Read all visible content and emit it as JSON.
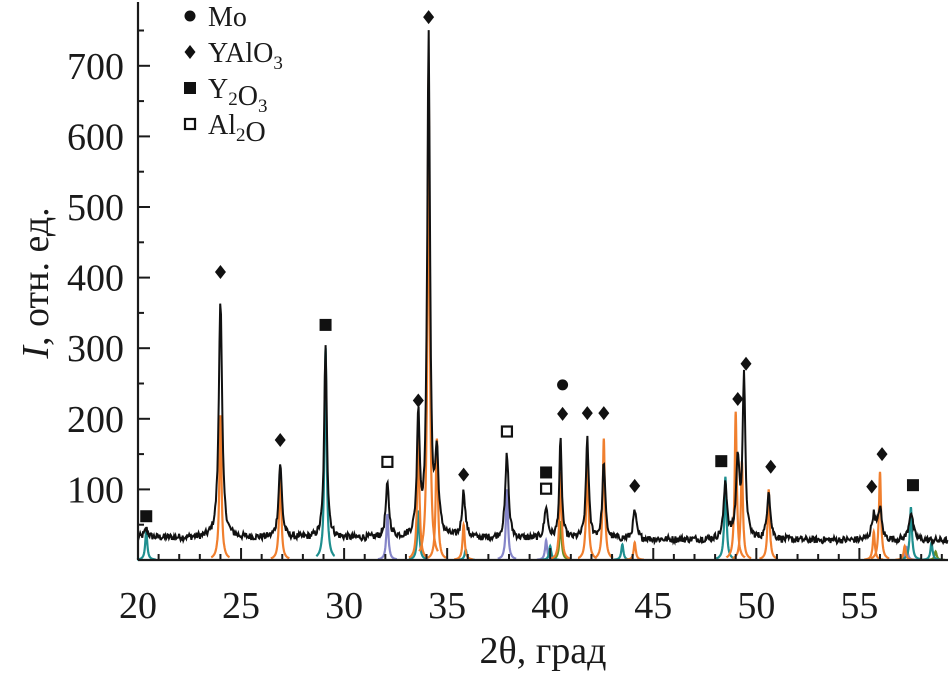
{
  "chart_data": {
    "type": "line",
    "title": "",
    "xlabel": "2θ, град",
    "ylabel": "I, отн. ед.",
    "ylabel_italic_part": "I",
    "ylabel_rest": ", отн. ед.",
    "xlim": [
      20,
      59.3
    ],
    "ylim": [
      0,
      790
    ],
    "x_ticks": [
      20,
      25,
      30,
      35,
      40,
      45,
      50,
      55
    ],
    "y_ticks": [
      100,
      200,
      300,
      400,
      500,
      600,
      700
    ],
    "grid": false,
    "legend_position": "top-left",
    "legend": [
      {
        "marker": "circle",
        "label": "Mo",
        "sub": []
      },
      {
        "marker": "diamond",
        "label": "YAlO3",
        "sub": [
          {
            "text": "YAlO",
            "sub": ""
          },
          {
            "text": "",
            "sub": "3"
          }
        ]
      },
      {
        "marker": "square",
        "label": "Y2O3",
        "sub": [
          {
            "text": "Y",
            "sub": "2"
          },
          {
            "text": "O",
            "sub": "3"
          }
        ]
      },
      {
        "marker": "open-square",
        "label": "Al2O",
        "sub": [
          {
            "text": "Al",
            "sub": "2"
          },
          {
            "text": "O",
            "sub": ""
          }
        ]
      }
    ],
    "colors": {
      "measured": "#111111",
      "YAlO3": "#f07f2e",
      "Y2O3": "#1f8f8f",
      "Al2O": "#8585c8",
      "Mo": "#6b8e23"
    },
    "series": [
      {
        "name": "measured",
        "baseline": 32,
        "noise": 5,
        "peaks": [
          {
            "x": 20.4,
            "h": 12,
            "w": 0.12
          },
          {
            "x": 24.0,
            "h": 340,
            "w": 0.12
          },
          {
            "x": 26.9,
            "h": 105,
            "w": 0.12
          },
          {
            "x": 29.1,
            "h": 270,
            "w": 0.1
          },
          {
            "x": 32.1,
            "h": 75,
            "w": 0.12
          },
          {
            "x": 33.6,
            "h": 175,
            "w": 0.1
          },
          {
            "x": 34.1,
            "h": 715,
            "w": 0.1
          },
          {
            "x": 34.5,
            "h": 110,
            "w": 0.12
          },
          {
            "x": 35.8,
            "h": 65,
            "w": 0.12
          },
          {
            "x": 37.9,
            "h": 120,
            "w": 0.12
          },
          {
            "x": 39.8,
            "h": 45,
            "w": 0.12
          },
          {
            "x": 40.5,
            "h": 140,
            "w": 0.09
          },
          {
            "x": 41.8,
            "h": 145,
            "w": 0.1
          },
          {
            "x": 42.6,
            "h": 110,
            "w": 0.1
          },
          {
            "x": 44.1,
            "h": 40,
            "w": 0.12
          },
          {
            "x": 48.5,
            "h": 80,
            "w": 0.12
          },
          {
            "x": 49.1,
            "h": 110,
            "w": 0.12
          },
          {
            "x": 49.4,
            "h": 225,
            "w": 0.1
          },
          {
            "x": 50.6,
            "h": 70,
            "w": 0.12
          },
          {
            "x": 55.7,
            "h": 35,
            "w": 0.15
          },
          {
            "x": 56.0,
            "h": 45,
            "w": 0.12
          },
          {
            "x": 57.5,
            "h": 40,
            "w": 0.15
          }
        ]
      },
      {
        "name": "YAlO3",
        "peaks": [
          {
            "x": 24.0,
            "h": 205
          },
          {
            "x": 26.9,
            "h": 130
          },
          {
            "x": 33.6,
            "h": 190
          },
          {
            "x": 34.1,
            "h": 690
          },
          {
            "x": 34.5,
            "h": 172
          },
          {
            "x": 35.8,
            "h": 50
          },
          {
            "x": 40.5,
            "h": 125
          },
          {
            "x": 41.8,
            "h": 155
          },
          {
            "x": 42.6,
            "h": 172
          },
          {
            "x": 44.1,
            "h": 25
          },
          {
            "x": 49.0,
            "h": 210
          },
          {
            "x": 49.3,
            "h": 140
          },
          {
            "x": 50.6,
            "h": 100
          },
          {
            "x": 55.7,
            "h": 40
          },
          {
            "x": 56.0,
            "h": 125
          },
          {
            "x": 57.2,
            "h": 20
          }
        ]
      },
      {
        "name": "Y2O3",
        "peaks": [
          {
            "x": 20.4,
            "h": 40
          },
          {
            "x": 29.1,
            "h": 300
          },
          {
            "x": 33.6,
            "h": 70
          },
          {
            "x": 35.9,
            "h": 15
          },
          {
            "x": 40.0,
            "h": 20
          },
          {
            "x": 43.5,
            "h": 22
          },
          {
            "x": 48.5,
            "h": 118
          },
          {
            "x": 57.5,
            "h": 75
          },
          {
            "x": 58.5,
            "h": 25
          }
        ]
      },
      {
        "name": "Al2O",
        "peaks": [
          {
            "x": 32.1,
            "h": 65
          },
          {
            "x": 37.9,
            "h": 100
          },
          {
            "x": 39.8,
            "h": 28
          },
          {
            "x": 57.3,
            "h": 18
          }
        ]
      },
      {
        "name": "Mo",
        "peaks": [
          {
            "x": 40.5,
            "h": 55
          },
          {
            "x": 58.7,
            "h": 12
          }
        ]
      }
    ],
    "annotations": [
      {
        "marker": "square",
        "x": 20.4,
        "y": 62
      },
      {
        "marker": "diamond",
        "x": 24.0,
        "y": 408
      },
      {
        "marker": "diamond",
        "x": 26.9,
        "y": 170
      },
      {
        "marker": "square",
        "x": 29.1,
        "y": 333
      },
      {
        "marker": "open-square",
        "x": 32.1,
        "y": 139
      },
      {
        "marker": "diamond",
        "x": 33.6,
        "y": 226
      },
      {
        "marker": "diamond",
        "x": 34.1,
        "y": 769
      },
      {
        "marker": "diamond",
        "x": 35.8,
        "y": 121
      },
      {
        "marker": "open-square",
        "x": 37.9,
        "y": 182
      },
      {
        "marker": "square",
        "x": 39.8,
        "y": 124
      },
      {
        "marker": "open-square",
        "x": 39.8,
        "y": 101
      },
      {
        "marker": "circle",
        "x": 40.6,
        "y": 248
      },
      {
        "marker": "diamond",
        "x": 40.6,
        "y": 207
      },
      {
        "marker": "diamond",
        "x": 41.8,
        "y": 208
      },
      {
        "marker": "diamond",
        "x": 42.6,
        "y": 208
      },
      {
        "marker": "diamond",
        "x": 44.1,
        "y": 105
      },
      {
        "marker": "square",
        "x": 48.3,
        "y": 140
      },
      {
        "marker": "diamond",
        "x": 49.1,
        "y": 228
      },
      {
        "marker": "diamond",
        "x": 49.5,
        "y": 278
      },
      {
        "marker": "diamond",
        "x": 50.7,
        "y": 132
      },
      {
        "marker": "diamond",
        "x": 55.6,
        "y": 104
      },
      {
        "marker": "diamond",
        "x": 56.1,
        "y": 150
      },
      {
        "marker": "square",
        "x": 57.6,
        "y": 106
      }
    ]
  }
}
